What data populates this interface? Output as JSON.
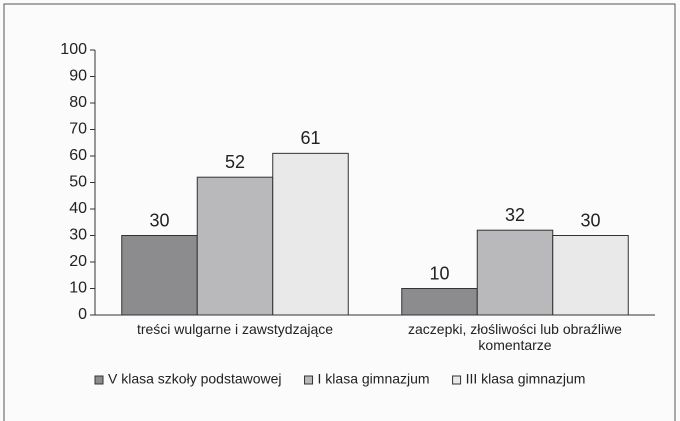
{
  "chart_data": {
    "type": "bar",
    "categories": [
      "treści wulgarne i zawstydzające",
      "zaczepki, złośliwości lub obraźliwe komentarze"
    ],
    "series": [
      {
        "name": "V klasa szkoły podstawowej",
        "color": "#8c8c8e",
        "values": [
          30,
          10
        ]
      },
      {
        "name": "I klasa gimnazjum",
        "color": "#b9b9bc",
        "values": [
          52,
          32
        ]
      },
      {
        "name": "III klasa gimnazjum",
        "color": "#e9e9ea",
        "values": [
          61,
          30
        ]
      }
    ],
    "ylim": [
      0,
      100
    ],
    "yticks": [
      0,
      10,
      20,
      30,
      40,
      50,
      60,
      70,
      80,
      90,
      100
    ],
    "grid": false,
    "legend": "bottom"
  }
}
